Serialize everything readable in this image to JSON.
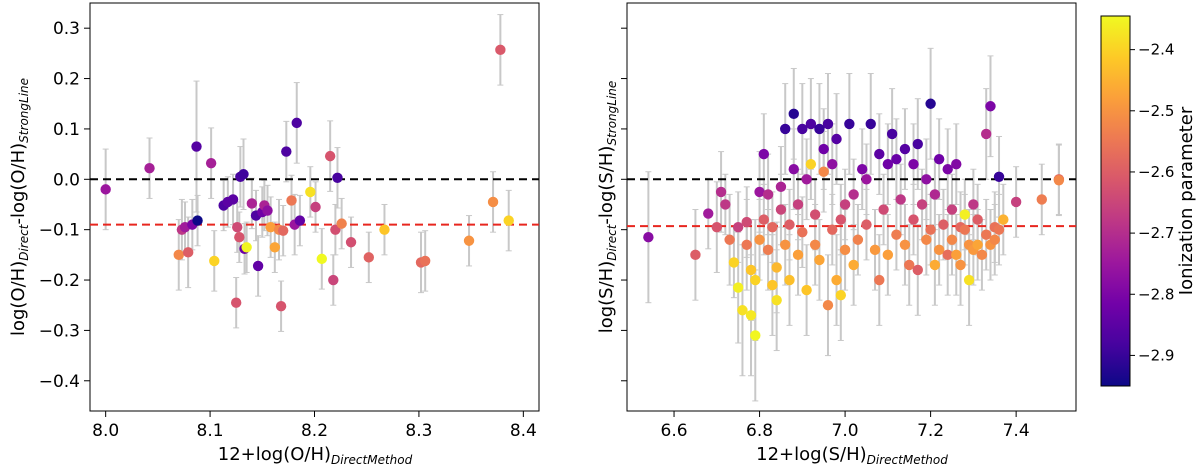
{
  "chart_data": [
    {
      "type": "scatter",
      "panel": "left",
      "xlabel": {
        "main": "12+log(O/H)",
        "sub": "DirectMethod"
      },
      "ylabel": {
        "main1": "log(O/H)",
        "sub1": "Direct",
        "main2": "-log(O/H)",
        "sub2": "StrongLine"
      },
      "xlim": [
        7.985,
        8.415
      ],
      "ylim": [
        -0.46,
        0.35
      ],
      "xticks": [
        {
          "v": 8.0,
          "label": "8.0"
        },
        {
          "v": 8.1,
          "label": "8.1"
        },
        {
          "v": 8.2,
          "label": "8.2"
        },
        {
          "v": 8.3,
          "label": "8.3"
        },
        {
          "v": 8.4,
          "label": "8.4"
        }
      ],
      "yticks": [
        {
          "v": 0.3,
          "label": "0.3"
        },
        {
          "v": 0.2,
          "label": "0.2"
        },
        {
          "v": 0.1,
          "label": "0.1"
        },
        {
          "v": 0.0,
          "label": "0.0"
        },
        {
          "v": -0.1,
          "label": "−0.1"
        },
        {
          "v": -0.2,
          "label": "−0.2"
        },
        {
          "v": -0.3,
          "label": "−0.3"
        },
        {
          "v": -0.4,
          "label": "−0.4"
        }
      ],
      "hlines": [
        {
          "y": 0.0,
          "color": "#000000",
          "style": "dashed"
        },
        {
          "y": -0.09,
          "color": "#e8261f",
          "style": "dashed"
        }
      ],
      "points": [
        [
          8.0,
          -0.02,
          0.08,
          -2.75
        ],
        [
          8.042,
          0.022,
          0.06,
          -2.73
        ],
        [
          8.07,
          -0.15,
          0.07,
          -2.52
        ],
        [
          8.073,
          -0.1,
          0.06,
          -2.68
        ],
        [
          8.076,
          -0.095,
          0.05,
          -2.74
        ],
        [
          8.079,
          -0.145,
          0.07,
          -2.6
        ],
        [
          8.083,
          -0.09,
          0.05,
          -2.8
        ],
        [
          8.087,
          0.065,
          0.13,
          -2.86
        ],
        [
          8.088,
          -0.082,
          0.05,
          -2.95
        ],
        [
          8.101,
          0.032,
          0.07,
          -2.73
        ],
        [
          8.104,
          -0.162,
          0.06,
          -2.4
        ],
        [
          8.113,
          -0.052,
          0.05,
          -2.87
        ],
        [
          8.117,
          -0.045,
          0.05,
          -2.85
        ],
        [
          8.122,
          -0.04,
          0.05,
          -2.85
        ],
        [
          8.125,
          -0.245,
          0.05,
          -2.62
        ],
        [
          8.126,
          -0.095,
          0.05,
          -2.64
        ],
        [
          8.128,
          -0.115,
          0.05,
          -2.62
        ],
        [
          8.129,
          0.005,
          0.06,
          -2.88
        ],
        [
          8.132,
          0.01,
          0.07,
          -2.89
        ],
        [
          8.133,
          -0.138,
          0.05,
          -2.83
        ],
        [
          8.135,
          -0.135,
          0.05,
          -2.35
        ],
        [
          8.14,
          -0.048,
          0.05,
          -2.72
        ],
        [
          8.144,
          -0.072,
          0.05,
          -2.87
        ],
        [
          8.146,
          -0.172,
          0.06,
          -2.84
        ],
        [
          8.15,
          -0.065,
          0.05,
          -2.82
        ],
        [
          8.152,
          -0.052,
          0.05,
          -2.72
        ],
        [
          8.155,
          -0.062,
          0.05,
          -2.77
        ],
        [
          8.158,
          -0.095,
          0.06,
          -2.48
        ],
        [
          8.162,
          -0.135,
          0.05,
          -2.47
        ],
        [
          8.166,
          -0.1,
          0.06,
          -2.52
        ],
        [
          8.168,
          -0.252,
          0.05,
          -2.62
        ],
        [
          8.17,
          -0.102,
          0.05,
          -2.58
        ],
        [
          8.173,
          0.055,
          0.06,
          -2.87
        ],
        [
          8.178,
          -0.042,
          0.05,
          -2.55
        ],
        [
          8.181,
          -0.09,
          0.06,
          -2.75
        ],
        [
          8.183,
          0.112,
          0.08,
          -2.87
        ],
        [
          8.186,
          -0.082,
          0.05,
          -2.84
        ],
        [
          8.196,
          -0.025,
          0.05,
          -2.38
        ],
        [
          8.201,
          -0.055,
          0.05,
          -2.66
        ],
        [
          8.207,
          -0.158,
          0.06,
          -2.34
        ],
        [
          8.215,
          0.046,
          0.07,
          -2.62
        ],
        [
          8.218,
          -0.2,
          0.05,
          -2.65
        ],
        [
          8.22,
          -0.1,
          0.05,
          -2.63
        ],
        [
          8.222,
          0.003,
          0.06,
          -2.88
        ],
        [
          8.226,
          -0.088,
          0.05,
          -2.53
        ],
        [
          8.235,
          -0.125,
          0.05,
          -2.63
        ],
        [
          8.252,
          -0.155,
          0.05,
          -2.59
        ],
        [
          8.267,
          -0.1,
          0.05,
          -2.42
        ],
        [
          8.302,
          -0.165,
          0.06,
          -2.58
        ],
        [
          8.306,
          -0.162,
          0.06,
          -2.56
        ],
        [
          8.348,
          -0.122,
          0.05,
          -2.5
        ],
        [
          8.371,
          -0.045,
          0.06,
          -2.51
        ],
        [
          8.378,
          0.257,
          0.07,
          -2.61
        ],
        [
          8.386,
          -0.082,
          0.06,
          -2.4
        ]
      ]
    },
    {
      "type": "scatter",
      "panel": "right",
      "xlabel": {
        "main": "12+log(S/H)",
        "sub": "DirectMethod"
      },
      "ylabel": {
        "main1": "log(S/H)",
        "sub1": "Direct",
        "main2": "-log(S/H)",
        "sub2": "StrongLine"
      },
      "xlim": [
        6.49,
        7.54
      ],
      "ylim": [
        -0.46,
        0.35
      ],
      "xticks": [
        {
          "v": 6.6,
          "label": "6.6"
        },
        {
          "v": 6.8,
          "label": "6.8"
        },
        {
          "v": 7.0,
          "label": "7.0"
        },
        {
          "v": 7.2,
          "label": "7.2"
        },
        {
          "v": 7.4,
          "label": "7.4"
        }
      ],
      "yticks": [
        {
          "v": 0.3,
          "label": ""
        },
        {
          "v": 0.2,
          "label": ""
        },
        {
          "v": 0.1,
          "label": ""
        },
        {
          "v": 0.0,
          "label": ""
        },
        {
          "v": -0.1,
          "label": ""
        },
        {
          "v": -0.2,
          "label": ""
        },
        {
          "v": -0.3,
          "label": ""
        },
        {
          "v": -0.4,
          "label": ""
        }
      ],
      "hlines": [
        {
          "y": 0.0,
          "color": "#000000",
          "style": "dashed"
        },
        {
          "y": -0.093,
          "color": "#e8261f",
          "style": "dashed"
        }
      ],
      "points": [
        [
          6.54,
          -0.115,
          0.13,
          -2.78
        ],
        [
          6.65,
          -0.15,
          0.09,
          -2.6
        ],
        [
          6.68,
          -0.068,
          0.07,
          -2.74
        ],
        [
          6.7,
          -0.095,
          0.09,
          -2.62
        ],
        [
          6.71,
          -0.025,
          0.08,
          -2.7
        ],
        [
          6.72,
          -0.05,
          0.06,
          -2.68
        ],
        [
          6.73,
          -0.12,
          0.09,
          -2.55
        ],
        [
          6.74,
          -0.165,
          0.07,
          -2.4
        ],
        [
          6.75,
          -0.215,
          0.11,
          -2.36
        ],
        [
          6.75,
          -0.095,
          0.07,
          -2.66
        ],
        [
          6.76,
          -0.26,
          0.13,
          -2.38
        ],
        [
          6.77,
          -0.13,
          0.09,
          -2.55
        ],
        [
          6.77,
          -0.085,
          0.07,
          -2.64
        ],
        [
          6.78,
          -0.27,
          0.12,
          -2.37
        ],
        [
          6.78,
          -0.18,
          0.1,
          -2.42
        ],
        [
          6.79,
          -0.31,
          0.13,
          -2.35
        ],
        [
          6.79,
          -0.2,
          0.12,
          -2.4
        ],
        [
          6.8,
          -0.025,
          0.08,
          -2.75
        ],
        [
          6.8,
          -0.12,
          0.08,
          -2.5
        ],
        [
          6.81,
          -0.08,
          0.07,
          -2.6
        ],
        [
          6.81,
          0.05,
          0.08,
          -2.8
        ],
        [
          6.82,
          -0.14,
          0.08,
          -2.54
        ],
        [
          6.82,
          -0.03,
          0.08,
          -2.7
        ],
        [
          6.83,
          -0.21,
          0.1,
          -2.42
        ],
        [
          6.83,
          -0.095,
          0.07,
          -2.58
        ],
        [
          6.84,
          -0.175,
          0.09,
          -2.44
        ],
        [
          6.84,
          -0.24,
          0.1,
          -2.38
        ],
        [
          6.85,
          -0.06,
          0.07,
          -2.65
        ],
        [
          6.85,
          -0.015,
          0.08,
          -2.72
        ],
        [
          6.86,
          -0.13,
          0.08,
          -2.5
        ],
        [
          6.86,
          0.1,
          0.09,
          -2.9
        ],
        [
          6.87,
          -0.2,
          0.09,
          -2.43
        ],
        [
          6.87,
          -0.09,
          0.07,
          -2.6
        ],
        [
          6.88,
          0.02,
          0.08,
          -2.78
        ],
        [
          6.88,
          0.13,
          0.09,
          -2.92
        ],
        [
          6.89,
          -0.15,
          0.08,
          -2.48
        ],
        [
          6.89,
          -0.05,
          0.07,
          -2.66
        ],
        [
          6.9,
          0.1,
          0.09,
          -2.88
        ],
        [
          6.9,
          -0.105,
          0.07,
          -2.56
        ],
        [
          6.91,
          -0.0,
          0.08,
          -2.74
        ],
        [
          6.91,
          -0.22,
          0.09,
          -2.42
        ],
        [
          6.92,
          0.03,
          0.07,
          -2.4
        ],
        [
          6.92,
          0.11,
          0.09,
          -2.87
        ],
        [
          6.93,
          -0.07,
          0.07,
          -2.63
        ],
        [
          6.93,
          -0.13,
          0.08,
          -2.52
        ],
        [
          6.94,
          0.1,
          0.09,
          -2.9
        ],
        [
          6.94,
          -0.16,
          0.08,
          -2.47
        ],
        [
          6.95,
          0.06,
          0.08,
          -2.82
        ],
        [
          6.95,
          0.015,
          0.08,
          -2.52
        ],
        [
          6.96,
          0.11,
          0.1,
          -2.88
        ],
        [
          6.96,
          -0.25,
          0.1,
          -2.52
        ],
        [
          6.97,
          -0.1,
          0.07,
          -2.58
        ],
        [
          6.97,
          0.03,
          0.08,
          -2.77
        ],
        [
          6.98,
          0.08,
          0.09,
          -2.86
        ],
        [
          6.98,
          -0.2,
          0.09,
          -2.46
        ],
        [
          6.99,
          -0.23,
          0.09,
          -2.4
        ],
        [
          6.99,
          -0.08,
          0.07,
          -2.62
        ],
        [
          7.0,
          -0.05,
          0.07,
          -2.66
        ],
        [
          7.0,
          -0.14,
          0.08,
          -2.51
        ],
        [
          7.01,
          0.11,
          0.1,
          -2.9
        ],
        [
          7.02,
          -0.17,
          0.08,
          -2.46
        ],
        [
          7.02,
          -0.03,
          0.07,
          -2.7
        ],
        [
          7.03,
          -0.12,
          0.07,
          -2.53
        ],
        [
          7.04,
          0.02,
          0.08,
          -2.8
        ],
        [
          7.05,
          0.0,
          0.07,
          -2.75
        ],
        [
          7.05,
          -0.09,
          0.07,
          -2.6
        ],
        [
          7.06,
          0.11,
          0.1,
          -2.9
        ],
        [
          7.07,
          -0.14,
          0.08,
          -2.49
        ],
        [
          7.08,
          0.05,
          0.08,
          -2.85
        ],
        [
          7.08,
          -0.2,
          0.09,
          -2.55
        ],
        [
          7.09,
          -0.06,
          0.07,
          -2.64
        ],
        [
          7.1,
          0.03,
          0.08,
          -2.82
        ],
        [
          7.1,
          -0.15,
          0.08,
          -2.48
        ],
        [
          7.11,
          0.09,
          0.09,
          -2.88
        ],
        [
          7.12,
          0.04,
          0.08,
          -2.83
        ],
        [
          7.12,
          -0.11,
          0.07,
          -2.54
        ],
        [
          7.13,
          -0.04,
          0.07,
          -2.68
        ],
        [
          7.14,
          0.06,
          0.08,
          -2.86
        ],
        [
          7.14,
          -0.13,
          0.08,
          -2.5
        ],
        [
          7.15,
          -0.17,
          0.08,
          -2.55
        ],
        [
          7.16,
          0.03,
          0.08,
          -2.8
        ],
        [
          7.16,
          -0.08,
          0.07,
          -2.62
        ],
        [
          7.17,
          0.07,
          0.09,
          -2.88
        ],
        [
          7.17,
          -0.18,
          0.09,
          -2.6
        ],
        [
          7.18,
          -0.05,
          0.07,
          -2.66
        ],
        [
          7.19,
          0.0,
          0.08,
          -2.77
        ],
        [
          7.19,
          -0.12,
          0.07,
          -2.52
        ],
        [
          7.2,
          0.15,
          0.11,
          -2.92
        ],
        [
          7.2,
          -0.1,
          0.07,
          -2.56
        ],
        [
          7.21,
          -0.03,
          0.07,
          -2.71
        ],
        [
          7.21,
          -0.17,
          0.08,
          -2.46
        ],
        [
          7.22,
          0.04,
          0.08,
          -2.82
        ],
        [
          7.22,
          -0.14,
          0.07,
          -2.5
        ],
        [
          7.23,
          -0.09,
          0.07,
          -2.6
        ],
        [
          7.24,
          -0.15,
          0.08,
          -2.57
        ],
        [
          7.24,
          0.02,
          0.08,
          -2.8
        ],
        [
          7.25,
          -0.06,
          0.07,
          -2.66
        ],
        [
          7.25,
          -0.12,
          0.07,
          -2.52
        ],
        [
          7.26,
          -0.15,
          0.08,
          -2.48
        ],
        [
          7.26,
          0.03,
          0.08,
          -2.79
        ],
        [
          7.27,
          -0.095,
          0.07,
          -2.58
        ],
        [
          7.27,
          -0.17,
          0.08,
          -2.5
        ],
        [
          7.28,
          -0.07,
          0.07,
          -2.36
        ],
        [
          7.28,
          -0.1,
          0.07,
          -2.55
        ],
        [
          7.29,
          -0.13,
          0.07,
          -2.5
        ],
        [
          7.29,
          -0.2,
          0.09,
          -2.38
        ],
        [
          7.3,
          -0.05,
          0.07,
          -2.68
        ],
        [
          7.3,
          -0.14,
          0.07,
          -2.49
        ],
        [
          7.31,
          -0.08,
          0.07,
          -2.6
        ],
        [
          7.31,
          -0.13,
          0.07,
          -2.47
        ],
        [
          7.32,
          -0.15,
          0.07,
          -2.52
        ],
        [
          7.33,
          -0.11,
          0.07,
          -2.55
        ],
        [
          7.33,
          0.09,
          0.09,
          -2.7
        ],
        [
          7.34,
          0.145,
          0.1,
          -2.8
        ],
        [
          7.34,
          -0.13,
          0.07,
          -2.5
        ],
        [
          7.35,
          -0.095,
          0.07,
          -2.56
        ],
        [
          7.35,
          -0.12,
          0.07,
          -2.52
        ],
        [
          7.36,
          0.005,
          0.08,
          -2.9
        ],
        [
          7.36,
          -0.1,
          0.07,
          -2.55
        ],
        [
          7.37,
          -0.08,
          0.07,
          -2.45
        ],
        [
          7.4,
          -0.045,
          0.07,
          -2.66
        ],
        [
          7.46,
          -0.04,
          0.07,
          -2.54
        ],
        [
          7.5,
          0.0,
          0.07,
          -2.58
        ],
        [
          7.5,
          -0.002,
          0.07,
          -2.52
        ]
      ]
    }
  ],
  "colorbar": {
    "label": "Ionization parameter",
    "range": [
      -2.95,
      -2.345
    ],
    "colormap": "plasma",
    "ticks": [
      {
        "v": -2.4,
        "label": "−2.4"
      },
      {
        "v": -2.5,
        "label": "−2.5"
      },
      {
        "v": -2.6,
        "label": "−2.6"
      },
      {
        "v": -2.7,
        "label": "−2.7"
      },
      {
        "v": -2.8,
        "label": "−2.8"
      },
      {
        "v": -2.9,
        "label": "−2.9"
      }
    ]
  },
  "colors": {
    "errorbar": "#c8c8c8",
    "zero_line": "#000000",
    "offset_line": "#e8261f",
    "plasma_stops": [
      "#0d0887",
      "#46039f",
      "#7201a8",
      "#9c179e",
      "#bd3786",
      "#d8576b",
      "#ed7953",
      "#fb9f3a",
      "#fdca26",
      "#f0f921"
    ]
  }
}
